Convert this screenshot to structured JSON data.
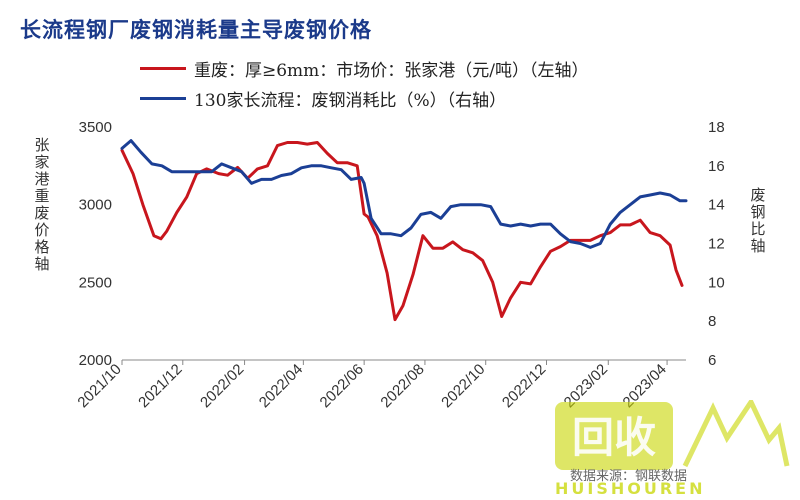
{
  "chart_data": {
    "type": "line",
    "title": "长流程钢厂废钢消耗量主导废钢价格",
    "legend_placement": "top",
    "x_ticks": [
      "2021/10",
      "2021/12",
      "2022/02",
      "2022/04",
      "2022/06",
      "2022/08",
      "2022/10",
      "2022/12",
      "2023/02",
      "2023/04"
    ],
    "y_left": {
      "label": "张家港重废价格轴",
      "range": [
        2000,
        3500
      ],
      "ticks": [
        "3500",
        "3000",
        "2500",
        "2000"
      ]
    },
    "y_right": {
      "label": "废钢比轴",
      "range": [
        6,
        18
      ],
      "ticks": [
        "18",
        "16",
        "14",
        "12",
        "10",
        "8",
        "6"
      ]
    },
    "series": [
      {
        "name": "重废：厚≥6mm：市场价：张家港（元/吨）（左轴）",
        "color": "#c8161d",
        "axis": "left",
        "x": [
          "2021-10-01",
          "2021-10-12",
          "2021-10-22",
          "2021-11-02",
          "2021-11-09",
          "2021-11-15",
          "2021-11-25",
          "2021-12-05",
          "2021-12-15",
          "2021-12-25",
          "2022-01-06",
          "2022-01-15",
          "2022-01-25",
          "2022-02-04",
          "2022-02-14",
          "2022-02-24",
          "2022-03-06",
          "2022-03-16",
          "2022-03-26",
          "2022-04-05",
          "2022-04-15",
          "2022-04-25",
          "2022-05-05",
          "2022-05-15",
          "2022-05-25",
          "2022-06-01",
          "2022-06-05",
          "2022-06-14",
          "2022-06-24",
          "2022-07-02",
          "2022-07-10",
          "2022-07-20",
          "2022-07-30",
          "2022-08-09",
          "2022-08-19",
          "2022-08-29",
          "2022-09-08",
          "2022-09-18",
          "2022-09-28",
          "2022-10-08",
          "2022-10-17",
          "2022-10-26",
          "2022-11-05",
          "2022-11-15",
          "2022-11-25",
          "2022-12-05",
          "2022-12-15",
          "2022-12-25",
          "2023-01-04",
          "2023-01-14",
          "2023-01-24",
          "2023-02-03",
          "2023-02-13",
          "2023-02-23",
          "2023-03-05",
          "2023-03-15",
          "2023-03-25",
          "2023-04-04",
          "2023-04-10",
          "2023-04-16"
        ],
        "y": [
          3350,
          3200,
          3000,
          2800,
          2780,
          2830,
          2950,
          3050,
          3200,
          3230,
          3200,
          3190,
          3240,
          3170,
          3230,
          3250,
          3380,
          3400,
          3400,
          3390,
          3400,
          3330,
          3270,
          3270,
          3250,
          2940,
          2920,
          2800,
          2560,
          2260,
          2350,
          2550,
          2800,
          2720,
          2720,
          2760,
          2710,
          2690,
          2640,
          2500,
          2280,
          2400,
          2500,
          2490,
          2600,
          2700,
          2730,
          2770,
          2770,
          2770,
          2800,
          2820,
          2870,
          2870,
          2900,
          2820,
          2800,
          2740,
          2580,
          2480
        ]
      },
      {
        "name": "130家长流程：废钢消耗比（%）（右轴）",
        "color": "#1b3f95",
        "axis": "right",
        "x": [
          "2021-10-01",
          "2021-10-10",
          "2021-10-20",
          "2021-10-31",
          "2021-11-10",
          "2021-11-20",
          "2021-11-30",
          "2021-12-10",
          "2021-12-20",
          "2021-12-30",
          "2022-01-09",
          "2022-01-19",
          "2022-01-29",
          "2022-02-08",
          "2022-02-18",
          "2022-02-28",
          "2022-03-10",
          "2022-03-20",
          "2022-03-30",
          "2022-04-09",
          "2022-04-19",
          "2022-04-29",
          "2022-05-09",
          "2022-05-19",
          "2022-05-29",
          "2022-06-01",
          "2022-06-08",
          "2022-06-18",
          "2022-06-28",
          "2022-07-08",
          "2022-07-18",
          "2022-07-28",
          "2022-08-07",
          "2022-08-17",
          "2022-08-27",
          "2022-09-06",
          "2022-09-16",
          "2022-09-26",
          "2022-10-06",
          "2022-10-16",
          "2022-10-26",
          "2022-11-05",
          "2022-11-15",
          "2022-11-25",
          "2022-12-05",
          "2022-12-15",
          "2022-12-25",
          "2023-01-04",
          "2023-01-14",
          "2023-01-24",
          "2023-02-03",
          "2023-02-13",
          "2023-02-23",
          "2023-03-05",
          "2023-03-15",
          "2023-03-25",
          "2023-04-04",
          "2023-04-14",
          "2023-04-20"
        ],
        "y": [
          16.9,
          17.3,
          16.7,
          16.1,
          16.0,
          15.7,
          15.7,
          15.7,
          15.7,
          15.7,
          16.1,
          15.9,
          15.7,
          15.1,
          15.3,
          15.3,
          15.5,
          15.6,
          15.9,
          16.0,
          16.0,
          15.9,
          15.8,
          15.3,
          15.4,
          15.1,
          13.3,
          12.5,
          12.5,
          12.4,
          12.8,
          13.5,
          13.6,
          13.3,
          13.9,
          14.0,
          14.0,
          14.0,
          13.9,
          13.0,
          12.9,
          13.0,
          12.9,
          13.0,
          13.0,
          12.5,
          12.1,
          12.0,
          11.8,
          12.0,
          13.0,
          13.6,
          14.0,
          14.4,
          14.5,
          14.6,
          14.5,
          14.2,
          14.2
        ]
      }
    ]
  },
  "watermark": {
    "logo_text": "回收",
    "brand_text": "HUISHOUREN",
    "source_text": "数据来源：钢联数据"
  }
}
